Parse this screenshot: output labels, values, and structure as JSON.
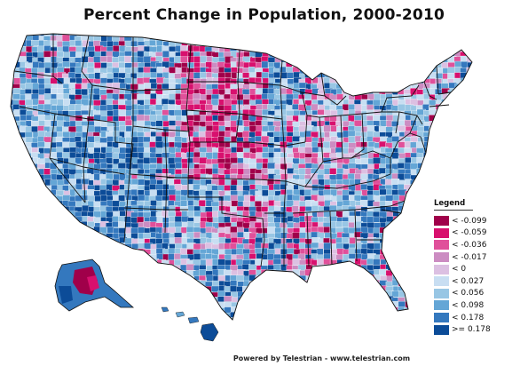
{
  "title": "Percent Change in Population, 2000-2010",
  "footer": "Powered by Telestrian - www.telestrian.com",
  "legend": {
    "title": "Legend",
    "items": [
      {
        "label": "< -0.099",
        "color": "#a0004a"
      },
      {
        "label": "< -0.059",
        "color": "#d8106e"
      },
      {
        "label": "< -0.036",
        "color": "#e0509a"
      },
      {
        "label": "< -0.017",
        "color": "#cc8cc2"
      },
      {
        "label": "< 0",
        "color": "#dcc0e2"
      },
      {
        "label": "< 0.027",
        "color": "#c8def2"
      },
      {
        "label": "< 0.056",
        "color": "#98c6e4"
      },
      {
        "label": "< 0.098",
        "color": "#64a6d6"
      },
      {
        "label": "< 0.178",
        "color": "#3478be"
      },
      {
        "label": ">= 0.178",
        "color": "#0c4c98"
      }
    ]
  }
}
